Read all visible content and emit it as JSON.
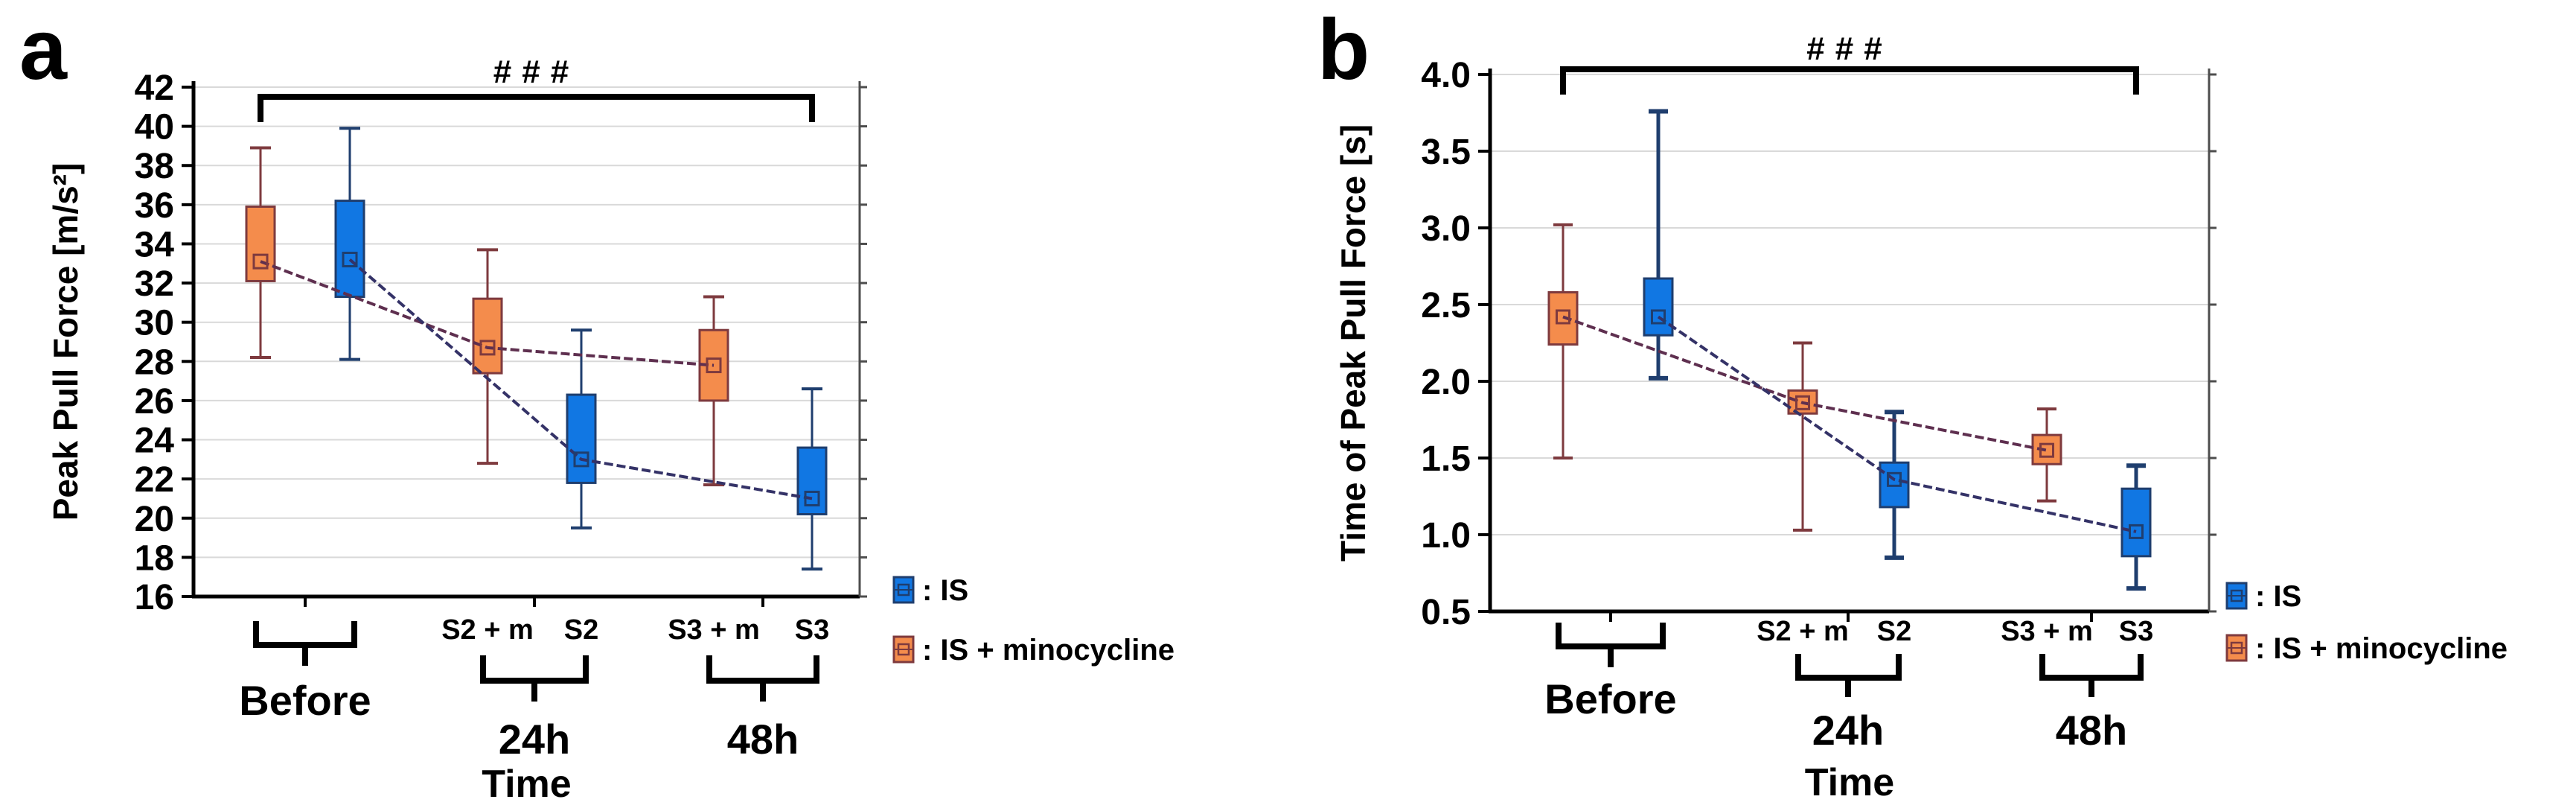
{
  "figure_title": "",
  "legend": {
    "items": [
      {
        "label": ": IS",
        "series": "IS",
        "fill": "#1177E3",
        "stroke": "#1F3E6E"
      },
      {
        "label": ": IS + minocycline",
        "series": "IS + minocycline",
        "fill": "#F48C4C",
        "stroke": "#7E3A3E"
      }
    ]
  },
  "chart_data": [
    {
      "type": "box",
      "panel": "a",
      "title": "",
      "ylabel": "Peak Pull Force [m/s²]",
      "xlabel": "Time",
      "ylim": [
        16,
        42
      ],
      "ytick_step": 2,
      "yticks": [
        16,
        18,
        20,
        22,
        24,
        26,
        28,
        30,
        32,
        34,
        36,
        38,
        40,
        42
      ],
      "ytick_labels": [
        "16",
        "18",
        "20",
        "22",
        "24",
        "26",
        "28",
        "30",
        "32",
        "34",
        "36",
        "38",
        "40",
        "42"
      ],
      "grid": true,
      "significance": {
        "label": "###",
        "from": "Before (IS + minocycline)",
        "to": "48h (IS)"
      },
      "groups": [
        {
          "label": "Before",
          "sublabels": [
            "",
            ""
          ]
        },
        {
          "label": "24h",
          "sublabels": [
            "S2 + m",
            "S2"
          ]
        },
        {
          "label": "48h",
          "sublabels": [
            "S3 + m",
            "S3"
          ]
        }
      ],
      "series": [
        {
          "name": "IS + minocycline",
          "fill": "#F48C4C",
          "stroke": "#7E3A3E",
          "line": "#5E2F4F",
          "boxes": [
            {
              "group": "Before",
              "median": 33.1,
              "q1": 32.1,
              "q3": 35.9,
              "whisker_low": 28.2,
              "whisker_high": 38.9
            },
            {
              "group": "24h",
              "median": 28.7,
              "q1": 27.4,
              "q3": 31.2,
              "whisker_low": 22.8,
              "whisker_high": 33.7
            },
            {
              "group": "48h",
              "median": 27.8,
              "q1": 26.0,
              "q3": 29.6,
              "whisker_low": 21.7,
              "whisker_high": 31.3
            }
          ]
        },
        {
          "name": "IS",
          "fill": "#1177E3",
          "stroke": "#1F3E6E",
          "line": "#343267",
          "boxes": [
            {
              "group": "Before",
              "median": 33.2,
              "q1": 31.3,
              "q3": 36.2,
              "whisker_low": 28.1,
              "whisker_high": 39.9
            },
            {
              "group": "24h",
              "median": 23.0,
              "q1": 21.8,
              "q3": 26.3,
              "whisker_low": 19.5,
              "whisker_high": 29.6
            },
            {
              "group": "48h",
              "median": 21.0,
              "q1": 20.2,
              "q3": 23.6,
              "whisker_low": 17.4,
              "whisker_high": 26.6
            }
          ]
        }
      ]
    },
    {
      "type": "box",
      "panel": "b",
      "title": "",
      "ylabel": "Time of Peak Pull Force [s]",
      "xlabel": "Time",
      "ylim": [
        0.5,
        4.0
      ],
      "ytick_step": 0.5,
      "yticks": [
        0.5,
        1.0,
        1.5,
        2.0,
        2.5,
        3.0,
        3.5,
        4.0
      ],
      "ytick_labels": [
        "0.5",
        "1.0",
        "1.5",
        "2.0",
        "2.5",
        "3.0",
        "3.5",
        "4.0"
      ],
      "grid": true,
      "significance": {
        "label": "###",
        "from": "Before (IS + minocycline)",
        "to": "48h (IS)"
      },
      "groups": [
        {
          "label": "Before",
          "sublabels": [
            "",
            ""
          ]
        },
        {
          "label": "24h",
          "sublabels": [
            "S2 + m",
            "S2"
          ]
        },
        {
          "label": "48h",
          "sublabels": [
            "S3 + m",
            "S3"
          ]
        }
      ],
      "series": [
        {
          "name": "IS + minocycline",
          "fill": "#F48C4C",
          "stroke": "#7E3A3E",
          "line": "#5E2F4F",
          "boxes": [
            {
              "group": "Before",
              "median": 2.42,
              "q1": 2.24,
              "q3": 2.58,
              "whisker_low": 1.5,
              "whisker_high": 3.02
            },
            {
              "group": "24h",
              "median": 1.86,
              "q1": 1.79,
              "q3": 1.94,
              "whisker_low": 1.03,
              "whisker_high": 2.25
            },
            {
              "group": "48h",
              "median": 1.55,
              "q1": 1.46,
              "q3": 1.65,
              "whisker_low": 1.22,
              "whisker_high": 1.82
            }
          ]
        },
        {
          "name": "IS",
          "fill": "#1177E3",
          "stroke": "#1F3E6E",
          "line": "#343267",
          "boxes": [
            {
              "group": "Before",
              "median": 2.42,
              "q1": 2.3,
              "q3": 2.67,
              "whisker_low": 2.02,
              "whisker_high": 3.76
            },
            {
              "group": "24h",
              "median": 1.36,
              "q1": 1.18,
              "q3": 1.47,
              "whisker_low": 0.85,
              "whisker_high": 1.8
            },
            {
              "group": "48h",
              "median": 1.02,
              "q1": 0.86,
              "q3": 1.3,
              "whisker_low": 0.65,
              "whisker_high": 1.45
            }
          ]
        }
      ]
    }
  ],
  "colors": {
    "background": "#FFFFFF",
    "gridline": "#D9D9D9",
    "axis": "#000000",
    "right_border": "#4D4D4D"
  }
}
